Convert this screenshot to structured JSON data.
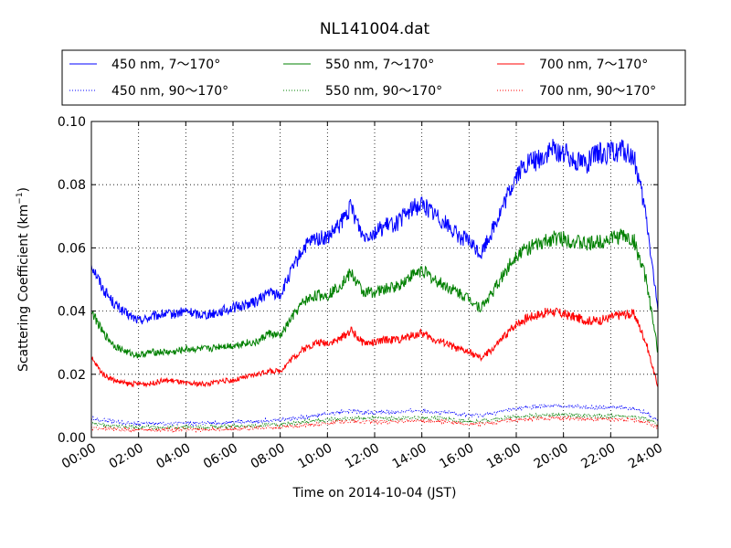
{
  "chart_data": {
    "type": "line",
    "title": "NL141004.dat",
    "xlabel": "Time on 2014-10-04 (JST)",
    "ylabel": "Scattering Coefficient (km",
    "ylabel_sup": "−1",
    "ylabel_close": ")",
    "xlim": [
      0,
      24
    ],
    "ylim": [
      0,
      0.1
    ],
    "grid": true,
    "legend_position": "top",
    "x_ticks": [
      0,
      2,
      4,
      6,
      8,
      10,
      12,
      14,
      16,
      18,
      20,
      22,
      24
    ],
    "x_tick_labels": [
      "00:00",
      "02:00",
      "04:00",
      "06:00",
      "08:00",
      "10:00",
      "12:00",
      "14:00",
      "16:00",
      "18:00",
      "20:00",
      "22:00",
      "24:00"
    ],
    "y_ticks": [
      0,
      0.02,
      0.04,
      0.06,
      0.08,
      0.1
    ],
    "y_tick_labels": [
      "0.00",
      "0.02",
      "0.04",
      "0.06",
      "0.08",
      "0.10"
    ],
    "x": [
      0,
      0.5,
      1,
      1.5,
      2,
      2.5,
      3,
      3.5,
      4,
      4.5,
      5,
      5.5,
      6,
      6.5,
      7,
      7.5,
      8,
      8.5,
      9,
      9.5,
      10,
      10.5,
      11,
      11.5,
      12,
      12.5,
      13,
      13.5,
      14,
      14.5,
      15,
      15.5,
      16,
      16.5,
      17,
      17.5,
      18,
      18.5,
      19,
      19.5,
      20,
      20.5,
      21,
      21.5,
      22,
      22.5,
      23,
      23.5,
      24
    ],
    "series": [
      {
        "name": "450 nm, 7～170°",
        "color": "#0000ff",
        "style": "solid",
        "values": [
          0.055,
          0.047,
          0.042,
          0.039,
          0.037,
          0.038,
          0.039,
          0.039,
          0.04,
          0.039,
          0.039,
          0.04,
          0.041,
          0.042,
          0.043,
          0.046,
          0.045,
          0.053,
          0.06,
          0.063,
          0.063,
          0.067,
          0.073,
          0.064,
          0.065,
          0.067,
          0.068,
          0.072,
          0.074,
          0.071,
          0.068,
          0.064,
          0.062,
          0.058,
          0.066,
          0.074,
          0.083,
          0.087,
          0.088,
          0.091,
          0.09,
          0.088,
          0.087,
          0.09,
          0.09,
          0.091,
          0.088,
          0.07,
          0.04
        ]
      },
      {
        "name": "450 nm, 90～170°",
        "color": "#0000ff",
        "style": "dotted",
        "values": [
          0.006,
          0.0055,
          0.005,
          0.0045,
          0.0045,
          0.0045,
          0.0045,
          0.0045,
          0.0045,
          0.0045,
          0.0045,
          0.0045,
          0.005,
          0.005,
          0.005,
          0.0055,
          0.0055,
          0.006,
          0.0065,
          0.007,
          0.0075,
          0.008,
          0.0085,
          0.008,
          0.008,
          0.008,
          0.008,
          0.0085,
          0.0085,
          0.008,
          0.008,
          0.0075,
          0.007,
          0.007,
          0.0075,
          0.0085,
          0.009,
          0.0095,
          0.0098,
          0.01,
          0.01,
          0.0098,
          0.0095,
          0.0095,
          0.0095,
          0.0095,
          0.009,
          0.008,
          0.0055
        ]
      },
      {
        "name": "550 nm, 7～170°",
        "color": "#008000",
        "style": "solid",
        "values": [
          0.04,
          0.033,
          0.029,
          0.027,
          0.026,
          0.027,
          0.027,
          0.027,
          0.028,
          0.028,
          0.028,
          0.029,
          0.029,
          0.03,
          0.03,
          0.033,
          0.032,
          0.038,
          0.043,
          0.045,
          0.045,
          0.048,
          0.052,
          0.046,
          0.046,
          0.047,
          0.048,
          0.051,
          0.053,
          0.05,
          0.048,
          0.046,
          0.044,
          0.041,
          0.046,
          0.052,
          0.058,
          0.06,
          0.061,
          0.063,
          0.063,
          0.062,
          0.061,
          0.062,
          0.063,
          0.064,
          0.062,
          0.05,
          0.027
        ]
      },
      {
        "name": "550 nm, 90～170°",
        "color": "#008000",
        "style": "dotted",
        "values": [
          0.0045,
          0.004,
          0.0035,
          0.0035,
          0.0032,
          0.0032,
          0.0032,
          0.0032,
          0.0033,
          0.0033,
          0.0033,
          0.0034,
          0.0035,
          0.0036,
          0.0037,
          0.004,
          0.004,
          0.0045,
          0.005,
          0.0052,
          0.0055,
          0.006,
          0.0062,
          0.006,
          0.006,
          0.006,
          0.006,
          0.0062,
          0.0063,
          0.006,
          0.006,
          0.0055,
          0.0052,
          0.0052,
          0.0056,
          0.0062,
          0.0066,
          0.0068,
          0.007,
          0.0072,
          0.0072,
          0.007,
          0.0068,
          0.0068,
          0.0068,
          0.0068,
          0.0066,
          0.0058,
          0.004
        ]
      },
      {
        "name": "700 nm, 7～170°",
        "color": "#ff0000",
        "style": "solid",
        "values": [
          0.025,
          0.02,
          0.018,
          0.017,
          0.017,
          0.017,
          0.018,
          0.018,
          0.017,
          0.017,
          0.017,
          0.018,
          0.018,
          0.019,
          0.02,
          0.021,
          0.021,
          0.025,
          0.028,
          0.03,
          0.03,
          0.031,
          0.034,
          0.03,
          0.03,
          0.031,
          0.031,
          0.032,
          0.033,
          0.031,
          0.03,
          0.028,
          0.027,
          0.025,
          0.028,
          0.032,
          0.036,
          0.038,
          0.039,
          0.04,
          0.039,
          0.038,
          0.037,
          0.037,
          0.038,
          0.039,
          0.039,
          0.03,
          0.016
        ]
      },
      {
        "name": "700 nm, 90～170°",
        "color": "#ff0000",
        "style": "dotted",
        "values": [
          0.003,
          0.0028,
          0.0025,
          0.0025,
          0.0024,
          0.0024,
          0.0024,
          0.0024,
          0.0025,
          0.0025,
          0.0025,
          0.0026,
          0.0027,
          0.0028,
          0.003,
          0.0032,
          0.0032,
          0.0036,
          0.004,
          0.0042,
          0.0045,
          0.005,
          0.0052,
          0.005,
          0.005,
          0.005,
          0.005,
          0.0052,
          0.0053,
          0.005,
          0.005,
          0.0046,
          0.0043,
          0.0043,
          0.0046,
          0.0052,
          0.0056,
          0.0058,
          0.006,
          0.0062,
          0.0062,
          0.006,
          0.0058,
          0.0058,
          0.0058,
          0.0058,
          0.0056,
          0.0048,
          0.003
        ]
      }
    ]
  }
}
